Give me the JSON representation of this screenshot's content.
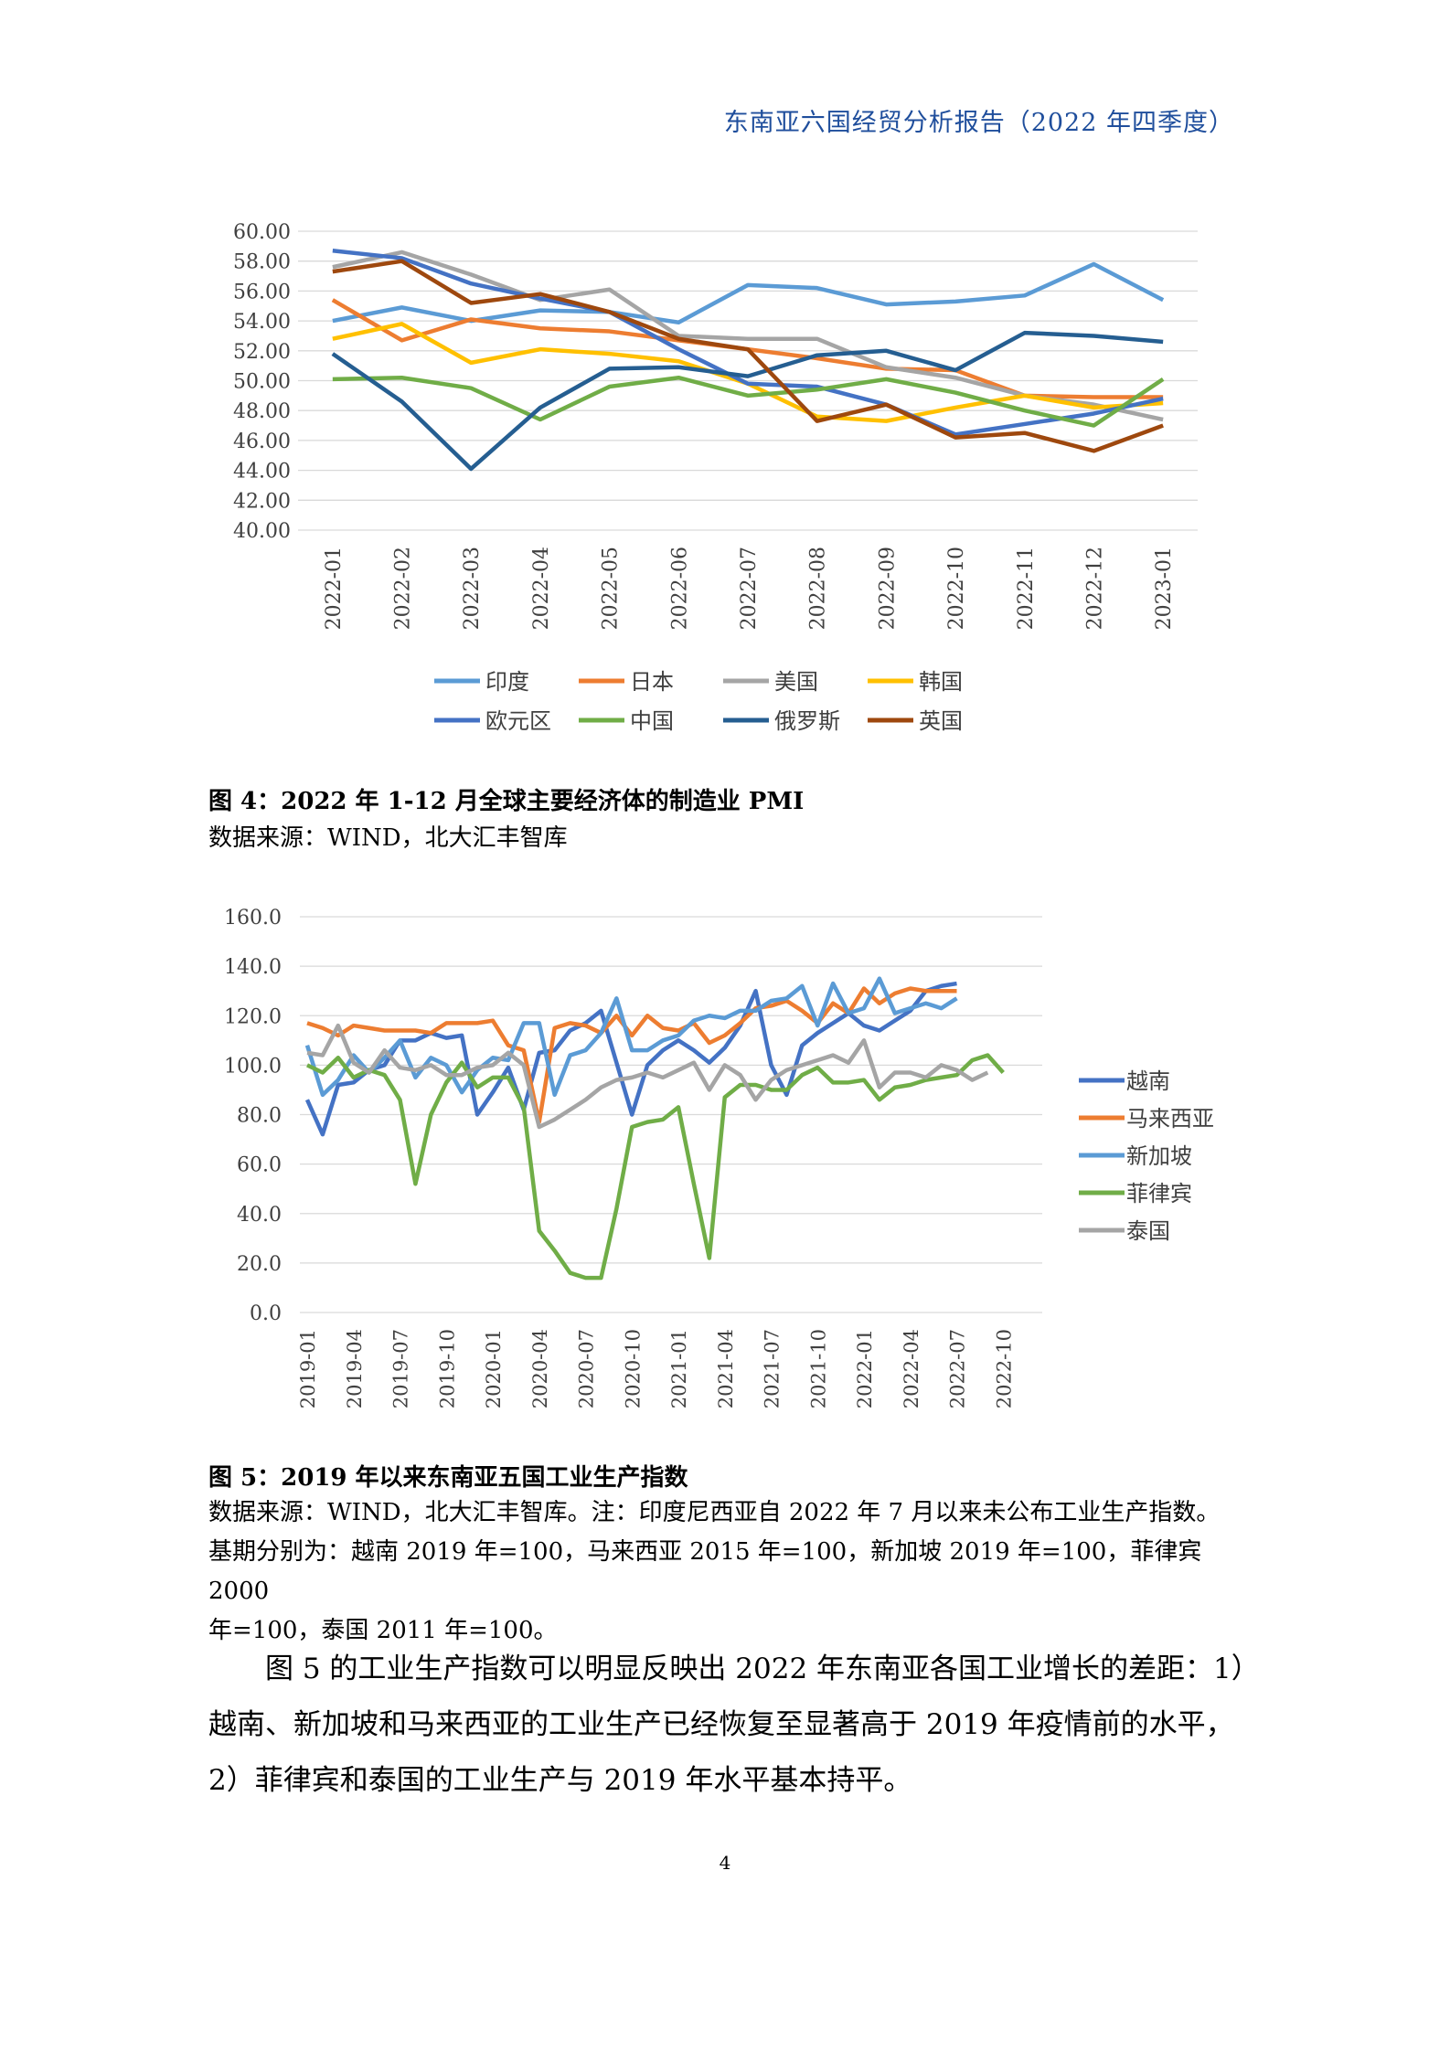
{
  "header": {
    "title": "东南亚六国经贸分析报告（2022 年四季度）"
  },
  "charts": [
    {
      "type": "line",
      "x": [
        "2022-01",
        "2022-02",
        "2022-03",
        "2022-04",
        "2022-05",
        "2022-06",
        "2022-07",
        "2022-08",
        "2022-09",
        "2022-10",
        "2022-11",
        "2022-12",
        "2023-01"
      ],
      "ylim": [
        40,
        60
      ],
      "yticks": [
        "40.00",
        "42.00",
        "44.00",
        "46.00",
        "48.00",
        "50.00",
        "52.00",
        "54.00",
        "56.00",
        "58.00",
        "60.00"
      ],
      "legend_position": "bottom",
      "grid": true,
      "series": [
        {
          "name": "印度",
          "color": "#5b9bd5",
          "values": [
            54.0,
            54.9,
            54.0,
            54.7,
            54.6,
            53.9,
            56.4,
            56.2,
            55.1,
            55.3,
            55.7,
            57.8,
            55.4
          ]
        },
        {
          "name": "日本",
          "color": "#ed7d31",
          "values": [
            55.4,
            52.7,
            54.1,
            53.5,
            53.3,
            52.7,
            52.1,
            51.5,
            50.8,
            50.7,
            49.0,
            48.9,
            48.9
          ]
        },
        {
          "name": "美国",
          "color": "#a5a5a5",
          "values": [
            57.6,
            58.6,
            57.1,
            55.4,
            56.1,
            53.0,
            52.8,
            52.8,
            50.9,
            50.2,
            49.0,
            48.4,
            47.4
          ]
        },
        {
          "name": "韩国",
          "color": "#ffc000",
          "values": [
            52.8,
            53.8,
            51.2,
            52.1,
            51.8,
            51.3,
            49.8,
            47.6,
            47.3,
            48.2,
            49.0,
            48.2,
            48.5
          ]
        },
        {
          "name": "欧元区",
          "color": "#4472c4",
          "values": [
            58.7,
            58.2,
            56.5,
            55.5,
            54.6,
            52.1,
            49.8,
            49.6,
            48.4,
            46.4,
            47.1,
            47.8,
            48.8
          ]
        },
        {
          "name": "中国",
          "color": "#70ad47",
          "values": [
            50.1,
            50.2,
            49.5,
            47.4,
            49.6,
            50.2,
            49.0,
            49.4,
            50.1,
            49.2,
            48.0,
            47.0,
            50.1
          ]
        },
        {
          "name": "俄罗斯",
          "color": "#255e91",
          "values": [
            51.8,
            48.6,
            44.1,
            48.2,
            50.8,
            50.9,
            50.3,
            51.7,
            52.0,
            50.7,
            53.2,
            53.0,
            52.6
          ]
        },
        {
          "name": "英国",
          "color": "#9e480e",
          "values": [
            57.3,
            58.0,
            55.2,
            55.8,
            54.6,
            52.8,
            52.1,
            47.3,
            48.4,
            46.2,
            46.5,
            45.3,
            47.0
          ]
        }
      ]
    },
    {
      "type": "line",
      "x_ticks": [
        "2019-01",
        "2019-04",
        "2019-07",
        "2019-10",
        "2020-01",
        "2020-04",
        "2020-07",
        "2020-10",
        "2021-01",
        "2021-04",
        "2021-07",
        "2021-10",
        "2022-01",
        "2022-04",
        "2022-07",
        "2022-10"
      ],
      "x_start": "2019-01",
      "ylim": [
        0,
        160
      ],
      "yticks": [
        "0.0",
        "20.0",
        "40.0",
        "60.0",
        "80.0",
        "100.0",
        "120.0",
        "140.0",
        "160.0"
      ],
      "legend_position": "right",
      "grid": true,
      "series": [
        {
          "name": "越南",
          "color": "#4472c4",
          "values": [
            86,
            72,
            92,
            93,
            98,
            100,
            110,
            110,
            113,
            111,
            112,
            80,
            89,
            99,
            82,
            105,
            106,
            114,
            117,
            122,
            101,
            80,
            100,
            106,
            110,
            106,
            101,
            107,
            116,
            130,
            100,
            88,
            108,
            113,
            117,
            121,
            116,
            114,
            118,
            122,
            130,
            132,
            133
          ]
        },
        {
          "name": "马来西亚",
          "color": "#ed7d31",
          "values": [
            117,
            115,
            112,
            116,
            115,
            114,
            114,
            114,
            113,
            117,
            117,
            117,
            118,
            108,
            106,
            77,
            115,
            117,
            116,
            113,
            120,
            112,
            120,
            115,
            114,
            117,
            109,
            112,
            117,
            123,
            124,
            126,
            122,
            117,
            125,
            121,
            131,
            125,
            129,
            131,
            130,
            130,
            130
          ]
        },
        {
          "name": "新加坡",
          "color": "#5b9bd5",
          "values": [
            108,
            88,
            94,
            104,
            97,
            103,
            110,
            95,
            103,
            100,
            89,
            98,
            103,
            102,
            117,
            117,
            88,
            104,
            106,
            113,
            127,
            106,
            106,
            110,
            112,
            118,
            120,
            119,
            122,
            122,
            126,
            127,
            132,
            116,
            133,
            121,
            123,
            135,
            121,
            123,
            125,
            123,
            127
          ]
        },
        {
          "name": "菲律宾",
          "color": "#70ad47",
          "values": [
            100,
            97,
            103,
            95,
            98,
            96,
            86,
            52,
            80,
            93,
            101,
            91,
            95,
            95,
            83,
            33,
            25,
            16,
            14,
            14,
            42,
            75,
            77,
            78,
            83,
            52,
            22,
            87,
            92,
            92,
            90,
            90,
            96,
            99,
            93,
            93,
            94,
            86,
            91,
            92,
            94,
            95,
            96,
            102,
            104,
            97
          ]
        },
        {
          "name": "泰国",
          "color": "#a5a5a5",
          "values": [
            105,
            104,
            116,
            101,
            97,
            106,
            99,
            98,
            100,
            96,
            96,
            99,
            100,
            105,
            100,
            75,
            78,
            82,
            86,
            91,
            94,
            95,
            97,
            95,
            98,
            101,
            90,
            100,
            96,
            86,
            94,
            98,
            100,
            102,
            104,
            101,
            110,
            91,
            97,
            97,
            95,
            100,
            98,
            94,
            97
          ]
        }
      ]
    }
  ],
  "figure4": {
    "caption": "图 4：2022 年 1-12 月全球主要经济体的制造业 PMI",
    "source": "数据来源：WIND，北大汇丰智库"
  },
  "figure5": {
    "caption": "图 5：2019 年以来东南亚五国工业生产指数",
    "source_line1": "数据来源：WIND，北大汇丰智库。注：印度尼西亚自 2022 年 7 月以来未公布工业生产指数。",
    "source_line2": "基期分别为：越南 2019 年=100，马来西亚 2015 年=100，新加坡 2019 年=100，菲律宾 2000",
    "source_line3": "年=100，泰国 2011 年=100。"
  },
  "body": {
    "line1": "图 5 的工业生产指数可以明显反映出 2022 年东南亚各国工业增长的差距：1）",
    "line2": "越南、新加坡和马来西亚的工业生产已经恢复至显著高于 2019 年疫情前的水平，",
    "line3": "2）菲律宾和泰国的工业生产与 2019 年水平基本持平。"
  },
  "page_number": "4"
}
